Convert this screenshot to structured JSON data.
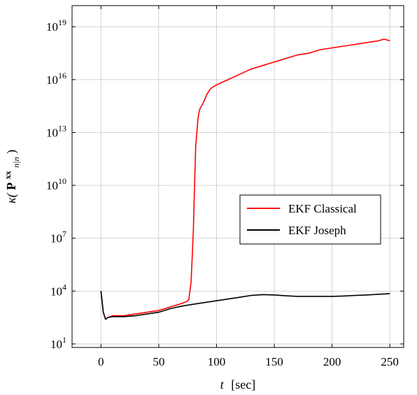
{
  "chart_data": {
    "type": "line",
    "title": "",
    "xlabel_var": "t",
    "xlabel_unit": "[sec]",
    "ylabel_kappa": "κ(",
    "ylabel_P": "P",
    "ylabel_sup": "xx",
    "ylabel_sub": "n|n",
    "ylabel_close": ")",
    "xlim": [
      -25,
      262
    ],
    "ylim_log10": [
      0.8,
      20.2
    ],
    "y_scale": "log",
    "x_ticks": [
      0,
      50,
      100,
      150,
      200,
      250
    ],
    "x_tick_labels": [
      "0",
      "50",
      "100",
      "150",
      "200",
      "250"
    ],
    "y_ticks_log10": [
      1,
      4,
      7,
      10,
      13,
      16,
      19
    ],
    "y_tick_labels": [
      {
        "base": "10",
        "exp": "1"
      },
      {
        "base": "10",
        "exp": "4"
      },
      {
        "base": "10",
        "exp": "7"
      },
      {
        "base": "10",
        "exp": "10"
      },
      {
        "base": "10",
        "exp": "13"
      },
      {
        "base": "10",
        "exp": "16"
      },
      {
        "base": "10",
        "exp": "19"
      }
    ],
    "grid": true,
    "legend_position": "center-right",
    "series": [
      {
        "name": "EKF Classical",
        "color": "#ff0000",
        "x": [
          0,
          2,
          4,
          6,
          10,
          20,
          30,
          40,
          50,
          60,
          70,
          74,
          76,
          78,
          79,
          80,
          81,
          82,
          83,
          84,
          85,
          86,
          88,
          90,
          92,
          95,
          100,
          110,
          120,
          130,
          140,
          150,
          160,
          170,
          180,
          190,
          200,
          210,
          220,
          230,
          240,
          245,
          250
        ],
        "y_log10": [
          4.0,
          2.8,
          2.4,
          2.5,
          2.6,
          2.6,
          2.7,
          2.8,
          2.9,
          3.1,
          3.3,
          3.4,
          3.5,
          4.5,
          6.0,
          7.5,
          10.0,
          12.2,
          13.0,
          13.8,
          14.2,
          14.4,
          14.6,
          14.9,
          15.2,
          15.5,
          15.7,
          16.0,
          16.3,
          16.6,
          16.8,
          17.0,
          17.2,
          17.4,
          17.5,
          17.7,
          17.8,
          17.9,
          18.0,
          18.1,
          18.2,
          18.3,
          18.2
        ]
      },
      {
        "name": "EKF Joseph",
        "color": "#000000",
        "x": [
          0,
          2,
          4,
          6,
          10,
          20,
          30,
          40,
          50,
          60,
          70,
          80,
          90,
          100,
          110,
          120,
          130,
          140,
          150,
          160,
          170,
          180,
          190,
          200,
          210,
          220,
          230,
          240,
          250
        ],
        "y_log10": [
          4.0,
          2.8,
          2.4,
          2.5,
          2.55,
          2.55,
          2.6,
          2.7,
          2.8,
          3.0,
          3.15,
          3.25,
          3.35,
          3.45,
          3.55,
          3.65,
          3.75,
          3.8,
          3.78,
          3.73,
          3.7,
          3.7,
          3.7,
          3.7,
          3.72,
          3.75,
          3.78,
          3.82,
          3.85
        ]
      }
    ]
  }
}
